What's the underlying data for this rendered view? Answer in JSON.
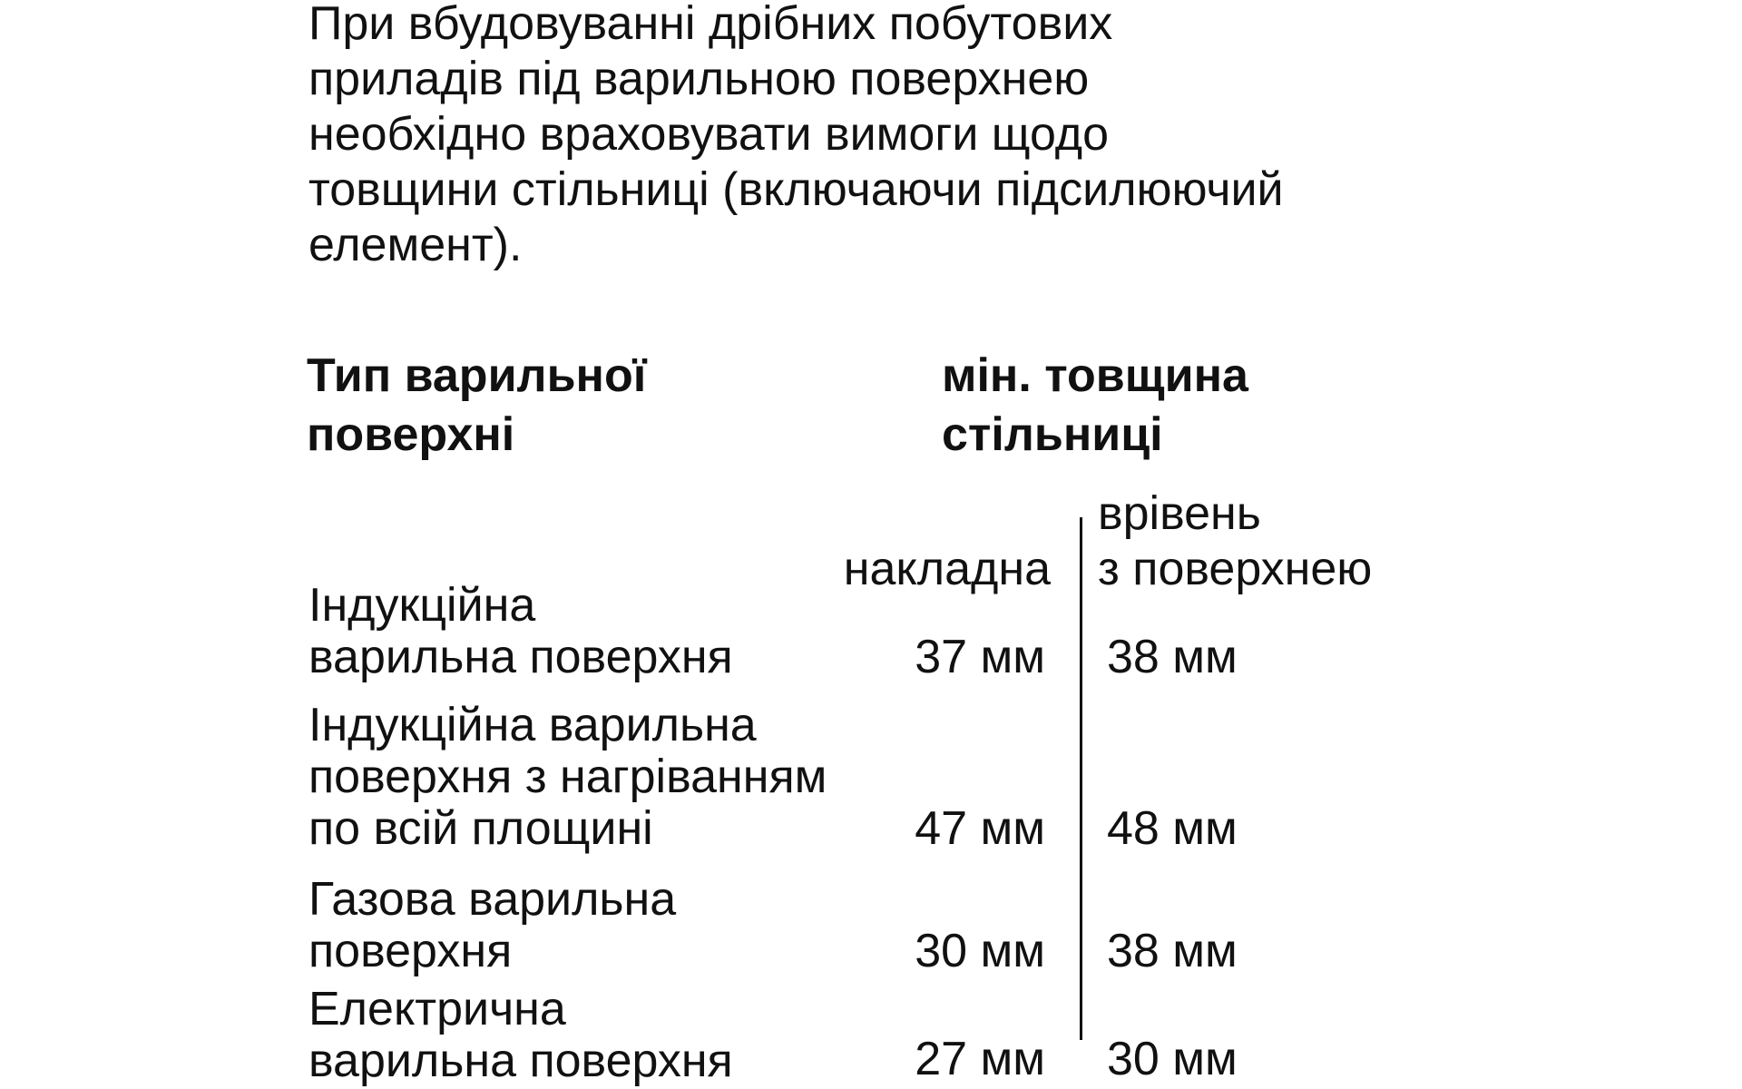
{
  "intro": [
    "При вбудовуванні дрібних побутових",
    "приладів під варильною поверхнею",
    "необхідно враховувати вимоги щодо",
    "товщини стільниці (включаючи підсилюючий",
    "елемент)."
  ],
  "table": {
    "col1_header": [
      "Тип варильної",
      "поверхні"
    ],
    "col2_header": [
      "мін. товщина",
      "стільниці"
    ],
    "sub_overlay": "накладна",
    "sub_flush": [
      "врівень",
      "з поверхнею"
    ],
    "rows": [
      {
        "label": [
          "Індукційна",
          "варильна поверхня"
        ],
        "overlay": "37 мм",
        "flush": "38 мм"
      },
      {
        "label": [
          "Індукційна варильна",
          "поверхня з нагріванням",
          "по всій площині"
        ],
        "overlay": "47 мм",
        "flush": "48 мм"
      },
      {
        "label": [
          "Газова варильна",
          "поверхня"
        ],
        "overlay": "30 мм",
        "flush": "38 мм"
      },
      {
        "label": [
          "Електрична",
          "варильна поверхня"
        ],
        "overlay": "27 мм",
        "flush": "30 мм"
      }
    ]
  }
}
